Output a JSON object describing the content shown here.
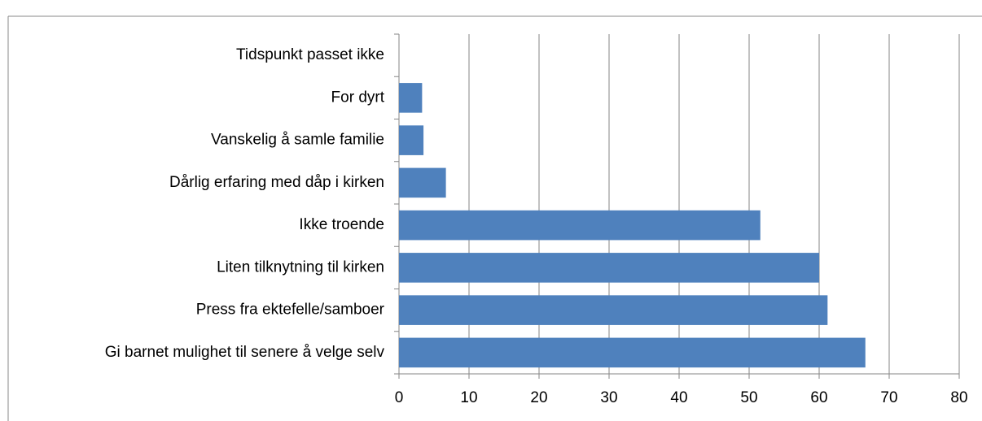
{
  "chart_data": {
    "type": "bar",
    "orientation": "horizontal",
    "categories": [
      "Tidspunkt passet ikke",
      "For dyrt",
      "Vanskelig å samle familie",
      "Dårlig erfaring med dåp i kirken",
      "Ikke troende",
      "Liten tilknytning til kirken",
      "Press fra ektefelle/samboer",
      "Gi barnet mulighet til senere å velge selv"
    ],
    "values": [
      0,
      3.3,
      3.5,
      6.7,
      51.6,
      60,
      61.2,
      66.6
    ],
    "color": "#4f81bd",
    "xlim": [
      0,
      80
    ],
    "xticks": [
      0,
      10,
      20,
      30,
      40,
      50,
      60,
      70,
      80
    ],
    "grid": true
  }
}
